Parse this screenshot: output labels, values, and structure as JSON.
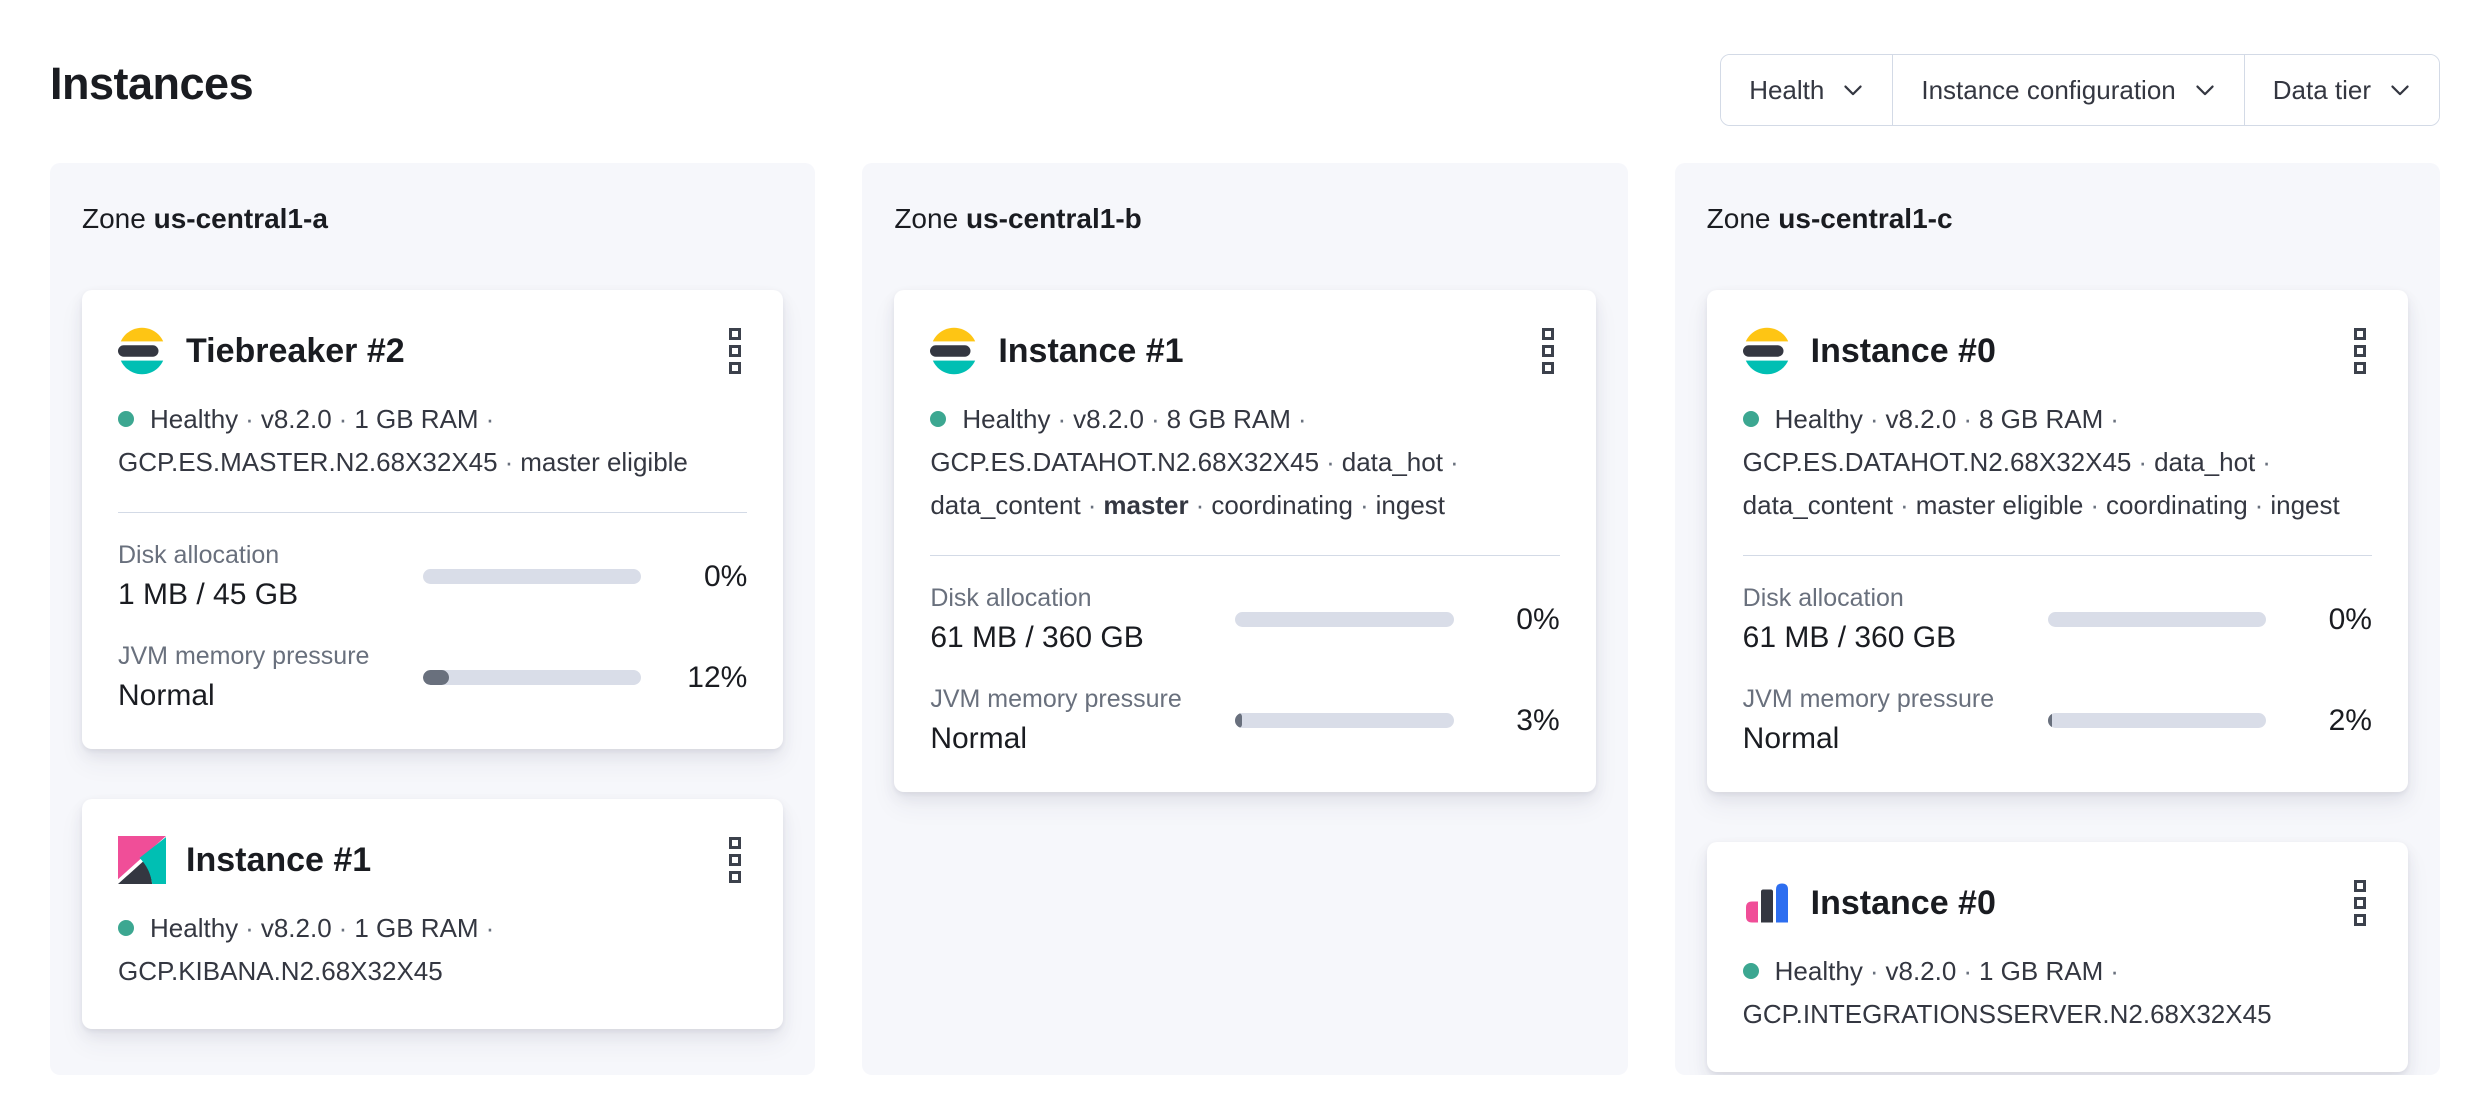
{
  "header": {
    "title": "Instances"
  },
  "filters": {
    "health": "Health",
    "instance_configuration": "Instance configuration",
    "data_tier": "Data tier"
  },
  "ui": {
    "sep": "·",
    "zone_label": "Zone",
    "disk_label": "Disk allocation",
    "jvm_label": "JVM memory pressure"
  },
  "icons": {
    "kebab": "boxes-vertical-icon",
    "dropdown": "chevron-down-icon",
    "health": "health-status-dot",
    "logos": [
      "elasticsearch-logo",
      "kibana-logo",
      "integrations-server-logo"
    ]
  },
  "colors": {
    "healthy_dot": "#3ca791",
    "bar_background": "#d9dde8",
    "bar_fill": "#69707d",
    "es_yellow": "#FEC514",
    "es_dark": "#343741",
    "es_teal": "#00BFB3",
    "kibana_pink": "#F04E98",
    "integrations_blue": "#2D6EF0",
    "panel_background": "#f6f7fb"
  },
  "zones": {
    "a": {
      "name": "us-central1-a"
    },
    "b": {
      "name": "us-central1-b"
    },
    "c": {
      "name": "us-central1-c"
    }
  },
  "cards": {
    "tiebreaker2": {
      "title": "Tiebreaker #2",
      "health": "Healthy",
      "version": "v8.2.0",
      "ram": "1 GB RAM",
      "config": "GCP.ES.MASTER.N2.68X32X45",
      "role": "master eligible",
      "disk": {
        "value": "1 MB / 45 GB",
        "pct_label": "0%",
        "pct": 0
      },
      "jvm": {
        "value": "Normal",
        "pct_label": "12%",
        "pct": 12
      }
    },
    "kibana1": {
      "title": "Instance #1",
      "health": "Healthy",
      "version": "v8.2.0",
      "ram": "1 GB RAM",
      "config": "GCP.KIBANA.N2.68X32X45"
    },
    "es_b1": {
      "title": "Instance #1",
      "health": "Healthy",
      "version": "v8.2.0",
      "ram": "8 GB RAM",
      "config": "GCP.ES.DATAHOT.N2.68X32X45",
      "tier": "data_hot",
      "role1": "data_content",
      "role2": "master",
      "role3": "coordinating",
      "role4": "ingest",
      "disk": {
        "value": "61 MB / 360 GB",
        "pct_label": "0%",
        "pct": 0
      },
      "jvm": {
        "value": "Normal",
        "pct_label": "3%",
        "pct": 3
      }
    },
    "es_c0": {
      "title": "Instance #0",
      "health": "Healthy",
      "version": "v8.2.0",
      "ram": "8 GB RAM",
      "config": "GCP.ES.DATAHOT.N2.68X32X45",
      "tier": "data_hot",
      "role1": "data_content",
      "role2": "master eligible",
      "role3": "coordinating",
      "role4": "ingest",
      "disk": {
        "value": "61 MB / 360 GB",
        "pct_label": "0%",
        "pct": 0
      },
      "jvm": {
        "value": "Normal",
        "pct_label": "2%",
        "pct": 2
      }
    },
    "integrations0": {
      "title": "Instance #0",
      "health": "Healthy",
      "version": "v8.2.0",
      "ram": "1 GB RAM",
      "config": "GCP.INTEGRATIONSSERVER.N2.68X32X45"
    }
  }
}
